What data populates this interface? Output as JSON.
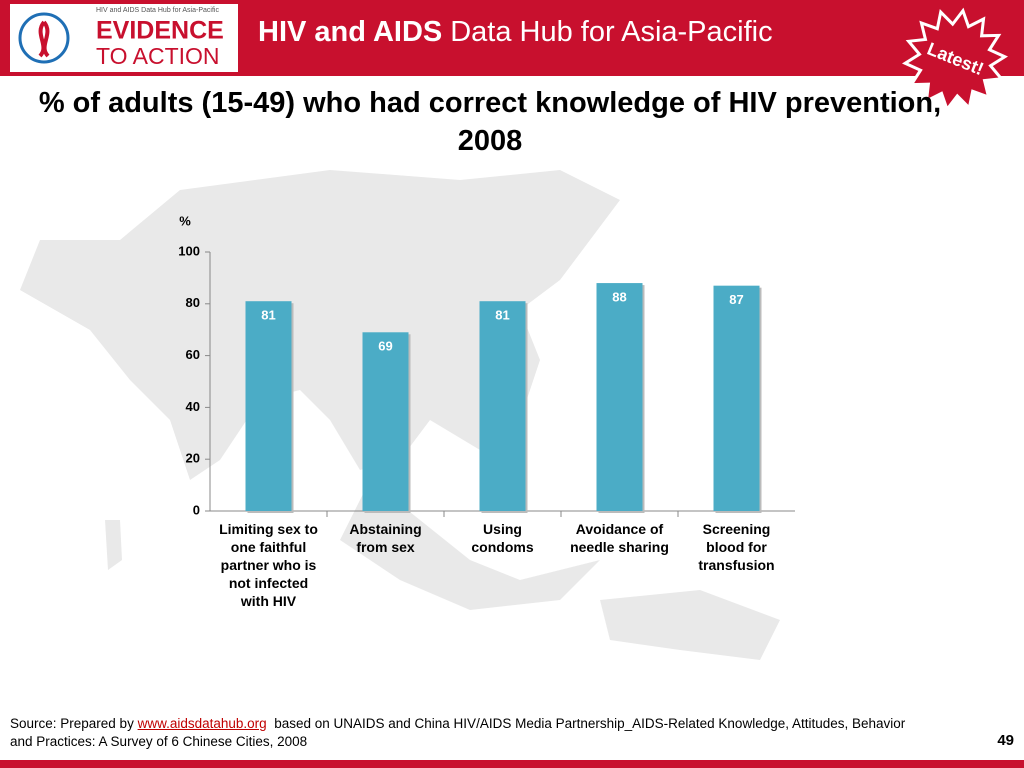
{
  "header": {
    "logo_caption": "HIV and AIDS Data Hub for Asia-Pacific",
    "logo_top": "EVIDENCE",
    "logo_bottom": "TO ACTION",
    "title_bold": "HIV and AIDS",
    "title_rest": "Data Hub for Asia-Pacific",
    "badge": "Latest!"
  },
  "chart_data": {
    "type": "bar",
    "title": "% of adults (15-49) who had correct knowledge of HIV prevention, 2008",
    "y_label": "%",
    "categories": [
      "Limiting sex to\none faithful\npartner who is\nnot infected\nwith HIV",
      "Abstaining\nfrom sex",
      "Using\ncondoms",
      "Avoidance of\nneedle sharing",
      "Screening\nblood for\ntransfusion"
    ],
    "values": [
      81,
      69,
      81,
      88,
      87
    ],
    "color": "#4bacc6",
    "ylim": [
      0,
      100
    ],
    "yticks": [
      0,
      20,
      40,
      60,
      80,
      100
    ],
    "grid": false
  },
  "footer": {
    "source_prefix": "Source: Prepared by",
    "source_link": "www.aidsdatahub.org",
    "source_rest": "based on UNAIDS and China HIV/AIDS Media Partnership_AIDS-Related Knowledge, Attitudes, Behavior and Practices: A Survey of 6 Chinese Cities, 2008",
    "page_number": "49"
  }
}
